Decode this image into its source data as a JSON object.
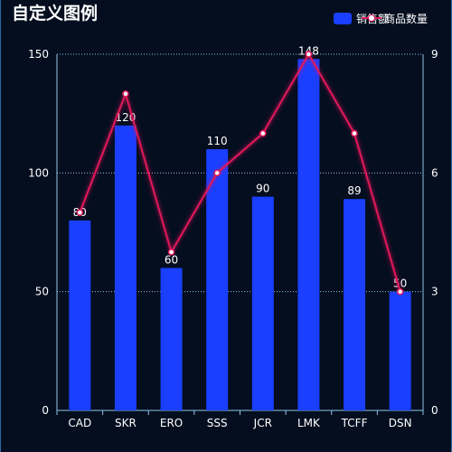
{
  "chart_data": {
    "type": "bar",
    "title": "自定义图例",
    "categories": [
      "CAD",
      "SKR",
      "ERO",
      "SSS",
      "JCR",
      "LMK",
      "TCFF",
      "DSN"
    ],
    "series": [
      {
        "name": "销售额",
        "type": "bar",
        "axis": "left",
        "values": [
          80,
          120,
          60,
          110,
          90,
          148,
          89,
          50
        ],
        "color": "#1a3fff",
        "show_labels": true
      },
      {
        "name": "商品数量",
        "type": "line",
        "axis": "right",
        "values": [
          5,
          8,
          4,
          6,
          7,
          9,
          7,
          3
        ],
        "color": "#e0185a",
        "show_labels": false
      }
    ],
    "y_left": {
      "min": 0,
      "max": 150,
      "ticks": [
        "0",
        "50",
        "100",
        "150"
      ]
    },
    "y_right": {
      "min": 0,
      "max": 9,
      "ticks": [
        "0",
        "3",
        "6",
        "9"
      ]
    },
    "grid": true,
    "legend_position": "top-right",
    "colors": {
      "background": "#040e1f",
      "axis": "#8fc6ea",
      "text": "#ffffff"
    }
  }
}
